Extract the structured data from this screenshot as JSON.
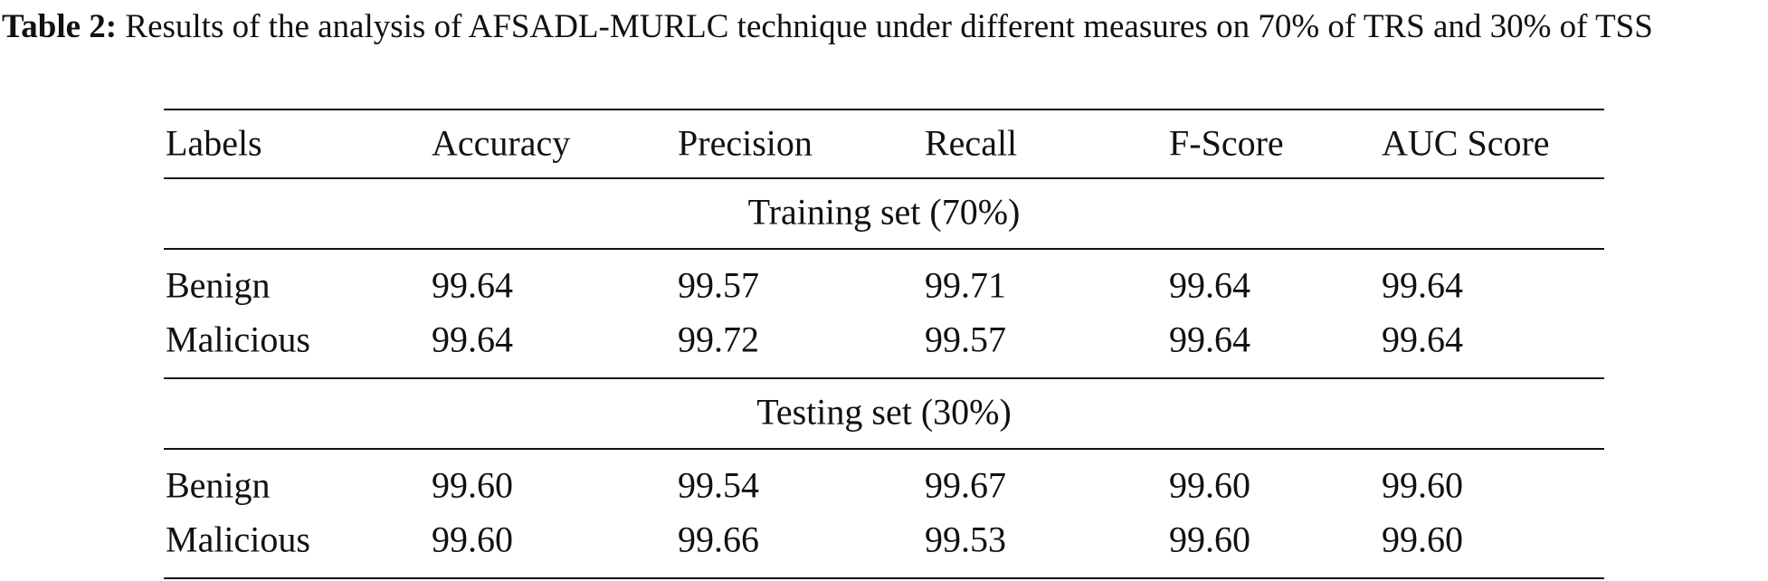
{
  "caption": {
    "label": "Table 2:",
    "text": "Results of the analysis of AFSADL-MURLC technique under different measures on 70% of TRS and 30% of TSS"
  },
  "table": {
    "headers": [
      "Labels",
      "Accuracy",
      "Precision",
      "Recall",
      "F-Score",
      "AUC Score"
    ],
    "sections": [
      {
        "title": "Training set (70%)",
        "rows": [
          [
            "Benign",
            "99.64",
            "99.57",
            "99.71",
            "99.64",
            "99.64"
          ],
          [
            "Malicious",
            "99.64",
            "99.72",
            "99.57",
            "99.64",
            "99.64"
          ]
        ]
      },
      {
        "title": "Testing set (30%)",
        "rows": [
          [
            "Benign",
            "99.60",
            "99.54",
            "99.67",
            "99.60",
            "99.60"
          ],
          [
            "Malicious",
            "99.60",
            "99.66",
            "99.53",
            "99.60",
            "99.60"
          ]
        ]
      }
    ]
  }
}
